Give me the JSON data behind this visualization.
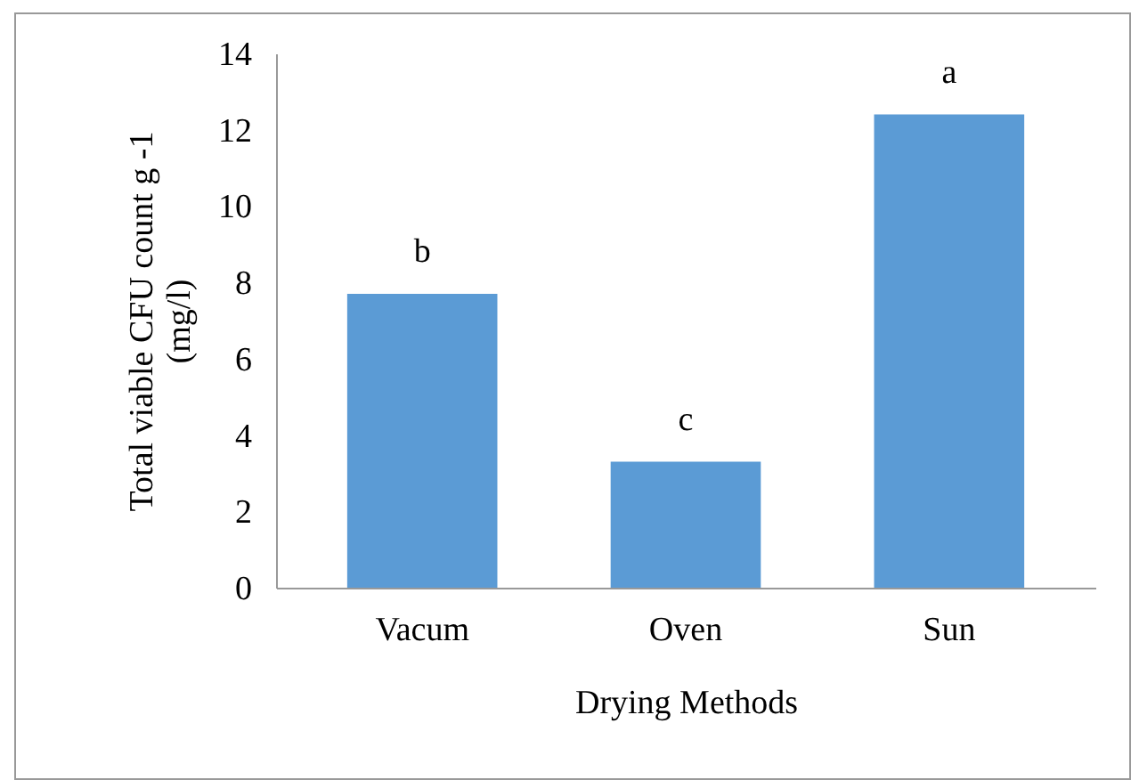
{
  "chart_data": {
    "type": "bar",
    "xlabel": "Drying Methods",
    "ylabel": "Total viable CFU count g -1 (mg/l)",
    "categories": [
      "Vacum",
      "Oven",
      "Sun"
    ],
    "values": [
      7.7,
      3.3,
      12.4
    ],
    "color": "#5b9bd5",
    "ylim": [
      0,
      14
    ],
    "yticks": [
      0,
      2,
      4,
      6,
      8,
      10,
      12,
      14
    ],
    "grid": false,
    "annotations": [
      {
        "text": "b",
        "x": "Vacum",
        "y": 7.7
      },
      {
        "text": "c",
        "x": "Oven",
        "y": 3.3
      },
      {
        "text": "a",
        "x": "Sun",
        "y": 12.4
      }
    ]
  }
}
